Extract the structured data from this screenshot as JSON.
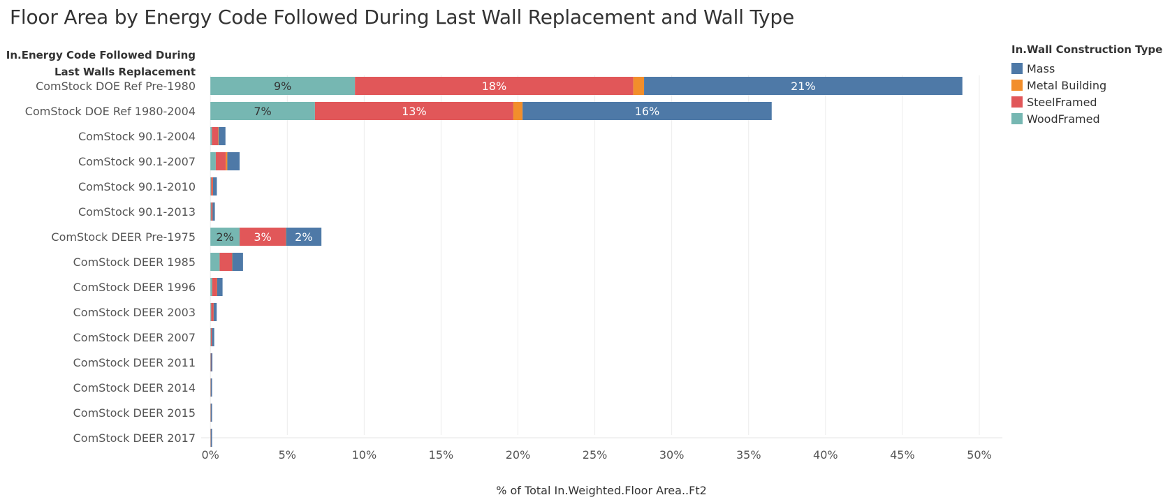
{
  "chart_data": {
    "type": "bar",
    "orientation": "horizontal",
    "stacked": true,
    "title": "Floor Area by Energy Code Followed During Last Wall Replacement  and Wall Type",
    "row_header": [
      "In.Energy Code Followed During",
      "Last Walls Replacement"
    ],
    "xlabel": "% of Total In.Weighted.Floor Area..Ft2",
    "xlim": [
      -0.6,
      51.5
    ],
    "xticks": [
      0,
      5,
      10,
      15,
      20,
      25,
      30,
      35,
      40,
      45,
      50
    ],
    "xtick_labels": [
      "0%",
      "5%",
      "10%",
      "15%",
      "20%",
      "25%",
      "30%",
      "35%",
      "40%",
      "45%",
      "50%"
    ],
    "grid": "vertical",
    "legend": {
      "title": "In.Wall Construction Type",
      "placement": "top-right",
      "entries": [
        {
          "name": "Mass",
          "color": "#4e79a7"
        },
        {
          "name": "Metal Building",
          "color": "#f28e2b"
        },
        {
          "name": "SteelFramed",
          "color": "#e15759"
        },
        {
          "name": "WoodFramed",
          "color": "#76b7b2"
        }
      ]
    },
    "stack_order": [
      "WoodFramed",
      "SteelFramed",
      "Metal Building",
      "Mass"
    ],
    "categories": [
      "ComStock DOE Ref Pre-1980",
      "ComStock DOE Ref 1980-2004",
      "ComStock 90.1-2004",
      "ComStock 90.1-2007",
      "ComStock 90.1-2010",
      "ComStock 90.1-2013",
      "ComStock DEER Pre-1975",
      "ComStock DEER 1985",
      "ComStock DEER 1996",
      "ComStock DEER 2003",
      "ComStock DEER 2007",
      "ComStock DEER 2011",
      "ComStock DEER 2014",
      "ComStock DEER 2015",
      "ComStock DEER 2017"
    ],
    "series": [
      {
        "name": "WoodFramed",
        "color": "#76b7b2",
        "values": [
          9.4,
          6.8,
          0.1,
          0.35,
          0.05,
          0.05,
          1.9,
          0.6,
          0.12,
          0.05,
          0.03,
          0.02,
          0.02,
          0.02,
          0.02
        ],
        "labels": [
          "9%",
          "7%",
          "",
          "",
          "",
          "",
          "2%",
          "",
          "",
          "",
          "",
          "",
          "",
          "",
          ""
        ],
        "label_color": "#333333"
      },
      {
        "name": "SteelFramed",
        "color": "#e15759",
        "values": [
          18.1,
          12.9,
          0.4,
          0.65,
          0.1,
          0.08,
          3.0,
          0.8,
          0.3,
          0.15,
          0.06,
          0.03,
          0.02,
          0.02,
          0.02
        ],
        "labels": [
          "18%",
          "13%",
          "",
          "",
          "",
          "",
          "3%",
          "",
          "",
          "",
          "",
          "",
          "",
          "",
          ""
        ],
        "label_color": "#ffffff"
      },
      {
        "name": "Metal Building",
        "color": "#f28e2b",
        "values": [
          0.7,
          0.6,
          0.03,
          0.1,
          0.02,
          0.01,
          0.02,
          0.02,
          0.02,
          0.01,
          0.01,
          0.0,
          0.0,
          0.0,
          0.0
        ],
        "labels": [
          "",
          "",
          "",
          "",
          "",
          "",
          "",
          "",
          "",
          "",
          "",
          "",
          "",
          "",
          ""
        ],
        "label_color": "#ffffff"
      },
      {
        "name": "Mass",
        "color": "#4e79a7",
        "values": [
          20.7,
          16.2,
          0.45,
          0.8,
          0.25,
          0.15,
          2.3,
          0.7,
          0.35,
          0.2,
          0.15,
          0.08,
          0.07,
          0.07,
          0.07
        ],
        "labels": [
          "21%",
          "16%",
          "",
          "",
          "",
          "",
          "2%",
          "",
          "",
          "",
          "",
          "",
          "",
          "",
          ""
        ],
        "label_color": "#ffffff"
      }
    ]
  }
}
